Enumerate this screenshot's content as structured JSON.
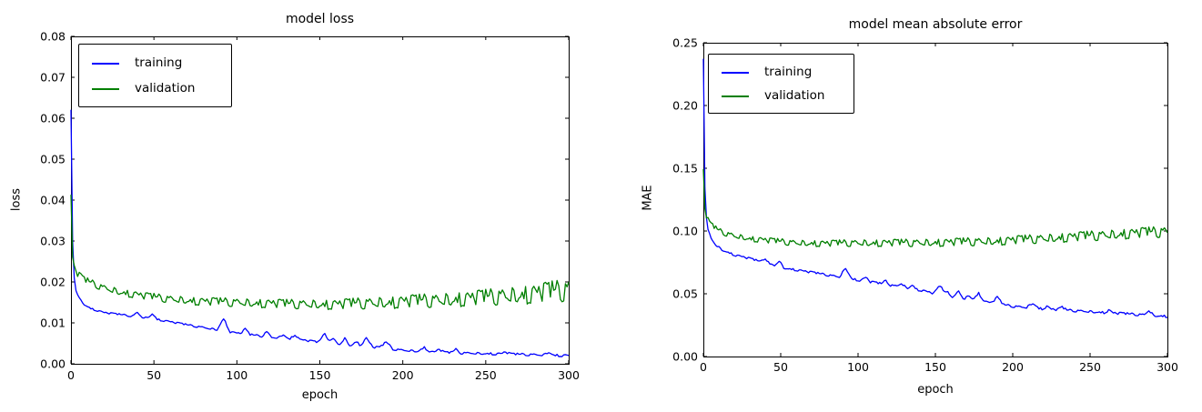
{
  "figure": {
    "background": "#ffffff",
    "axis_color": "#000000",
    "tick_direction": "in"
  },
  "noise_pattern": [
    0.36,
    -0.82,
    0.54,
    1.0,
    -0.44,
    -0.98,
    0.72,
    -0.18,
    0.88,
    -0.62,
    0.12,
    0.8,
    -0.92,
    0.4,
    -0.3,
    0.96,
    -0.72,
    0.2,
    -1.0,
    0.6,
    0.08,
    -0.52,
    0.76,
    -0.34,
    0.98,
    -0.86,
    0.3,
    0.64,
    -0.6,
    0.9,
    -0.24,
    0.46,
    -0.94,
    0.7,
    -0.08,
    0.84,
    -0.48,
    0.26,
    -0.76,
    0.5
  ],
  "chart_data": [
    {
      "type": "line",
      "title": "model loss",
      "xlabel": "epoch",
      "ylabel": "loss",
      "xlim": [
        0,
        300
      ],
      "ylim": [
        0.0,
        0.08
      ],
      "xticks": [
        0,
        50,
        100,
        150,
        200,
        250,
        300
      ],
      "ytick_labels": [
        "0.00",
        "0.01",
        "0.02",
        "0.03",
        "0.04",
        "0.05",
        "0.06",
        "0.07",
        "0.08"
      ],
      "grid": false,
      "legend_position": "upper left",
      "series": [
        {
          "name": "training",
          "color": "#0000ff",
          "phase": 0,
          "keypoints": [
            [
              0,
              0.062
            ],
            [
              1,
              0.03
            ],
            [
              2,
              0.021
            ],
            [
              3,
              0.018
            ],
            [
              5,
              0.016
            ],
            [
              8,
              0.0145
            ],
            [
              12,
              0.0135
            ],
            [
              20,
              0.0125
            ],
            [
              30,
              0.012
            ],
            [
              50,
              0.011
            ],
            [
              70,
              0.0095
            ],
            [
              90,
              0.0082
            ],
            [
              100,
              0.0075
            ],
            [
              120,
              0.0065
            ],
            [
              140,
              0.0058
            ],
            [
              150,
              0.0052
            ],
            [
              170,
              0.0045
            ],
            [
              190,
              0.0038
            ],
            [
              200,
              0.0033
            ],
            [
              220,
              0.0028
            ],
            [
              240,
              0.0026
            ],
            [
              260,
              0.0024
            ],
            [
              280,
              0.0022
            ],
            [
              300,
              0.002
            ]
          ],
          "noise_amp": [
            [
              0,
              0.0002
            ],
            [
              300,
              0.0003
            ]
          ],
          "bumps": [
            [
              40,
              0.001,
              3
            ],
            [
              49,
              0.0012,
              3
            ],
            [
              92,
              0.003,
              4
            ],
            [
              105,
              0.0012,
              3
            ],
            [
              118,
              0.0012,
              3
            ],
            [
              128,
              0.001,
              3
            ],
            [
              135,
              0.0012,
              3
            ],
            [
              153,
              0.0022,
              4
            ],
            [
              158,
              0.0012,
              3
            ],
            [
              165,
              0.0015,
              3
            ],
            [
              172,
              0.001,
              3
            ],
            [
              178,
              0.002,
              4
            ],
            [
              190,
              0.0015,
              4
            ],
            [
              213,
              0.001,
              4
            ],
            [
              222,
              0.0008,
              3
            ],
            [
              232,
              0.0008,
              3
            ],
            [
              262,
              0.0005,
              3
            ],
            [
              288,
              0.0008,
              3
            ]
          ]
        },
        {
          "name": "validation",
          "color": "#007f00",
          "phase": 13,
          "keypoints": [
            [
              0,
              0.041
            ],
            [
              1,
              0.026
            ],
            [
              2,
              0.0235
            ],
            [
              4,
              0.022
            ],
            [
              8,
              0.0205
            ],
            [
              12,
              0.0198
            ],
            [
              20,
              0.0185
            ],
            [
              30,
              0.0175
            ],
            [
              45,
              0.0165
            ],
            [
              60,
              0.0158
            ],
            [
              80,
              0.0152
            ],
            [
              100,
              0.015
            ],
            [
              130,
              0.0146
            ],
            [
              160,
              0.0145
            ],
            [
              190,
              0.015
            ],
            [
              220,
              0.0155
            ],
            [
              250,
              0.0162
            ],
            [
              275,
              0.017
            ],
            [
              300,
              0.018
            ]
          ],
          "noise_amp": [
            [
              0,
              0.0008
            ],
            [
              150,
              0.0012
            ],
            [
              250,
              0.002
            ],
            [
              300,
              0.0028
            ]
          ],
          "bumps": []
        }
      ]
    },
    {
      "type": "line",
      "title": "model mean absolute error",
      "xlabel": "epoch",
      "ylabel": "MAE",
      "xlim": [
        0,
        300
      ],
      "ylim": [
        0.0,
        0.25
      ],
      "xticks": [
        0,
        50,
        100,
        150,
        200,
        250,
        300
      ],
      "ytick_labels": [
        "0.00",
        "0.05",
        "0.10",
        "0.15",
        "0.20",
        "0.25"
      ],
      "grid": false,
      "legend_position": "upper left",
      "series": [
        {
          "name": "training",
          "color": "#0000ff",
          "phase": 5,
          "keypoints": [
            [
              0,
              0.238
            ],
            [
              1,
              0.135
            ],
            [
              2,
              0.11
            ],
            [
              3,
              0.101
            ],
            [
              5,
              0.094
            ],
            [
              8,
              0.089
            ],
            [
              12,
              0.085
            ],
            [
              20,
              0.081
            ],
            [
              30,
              0.078
            ],
            [
              50,
              0.071
            ],
            [
              70,
              0.067
            ],
            [
              90,
              0.063
            ],
            [
              100,
              0.061
            ],
            [
              120,
              0.057
            ],
            [
              140,
              0.053
            ],
            [
              150,
              0.05
            ],
            [
              170,
              0.046
            ],
            [
              190,
              0.042
            ],
            [
              200,
              0.04
            ],
            [
              220,
              0.038
            ],
            [
              240,
              0.0365
            ],
            [
              260,
              0.035
            ],
            [
              280,
              0.0335
            ],
            [
              300,
              0.032
            ]
          ],
          "noise_amp": [
            [
              0,
              0.0008
            ],
            [
              300,
              0.001
            ]
          ],
          "bumps": [
            [
              40,
              0.004,
              3
            ],
            [
              49,
              0.005,
              3
            ],
            [
              92,
              0.008,
              4
            ],
            [
              105,
              0.003,
              3
            ],
            [
              118,
              0.003,
              3
            ],
            [
              128,
              0.003,
              3
            ],
            [
              135,
              0.003,
              3
            ],
            [
              153,
              0.007,
              4
            ],
            [
              158,
              0.003,
              3
            ],
            [
              165,
              0.005,
              3
            ],
            [
              172,
              0.003,
              3
            ],
            [
              178,
              0.006,
              4
            ],
            [
              190,
              0.005,
              4
            ],
            [
              213,
              0.004,
              4
            ],
            [
              222,
              0.002,
              3
            ],
            [
              232,
              0.002,
              3
            ],
            [
              262,
              0.002,
              3
            ],
            [
              288,
              0.004,
              3
            ]
          ]
        },
        {
          "name": "validation",
          "color": "#007f00",
          "phase": 27,
          "keypoints": [
            [
              0,
              0.148
            ],
            [
              1,
              0.118
            ],
            [
              2,
              0.112
            ],
            [
              4,
              0.106
            ],
            [
              8,
              0.102
            ],
            [
              12,
              0.099
            ],
            [
              20,
              0.096
            ],
            [
              30,
              0.094
            ],
            [
              45,
              0.092
            ],
            [
              60,
              0.0905
            ],
            [
              80,
              0.09
            ],
            [
              100,
              0.0905
            ],
            [
              130,
              0.0905
            ],
            [
              160,
              0.091
            ],
            [
              190,
              0.092
            ],
            [
              220,
              0.094
            ],
            [
              250,
              0.096
            ],
            [
              275,
              0.098
            ],
            [
              300,
              0.0995
            ]
          ],
          "noise_amp": [
            [
              0,
              0.002
            ],
            [
              100,
              0.0028
            ],
            [
              200,
              0.0035
            ],
            [
              300,
              0.0045
            ]
          ],
          "bumps": []
        }
      ]
    }
  ]
}
